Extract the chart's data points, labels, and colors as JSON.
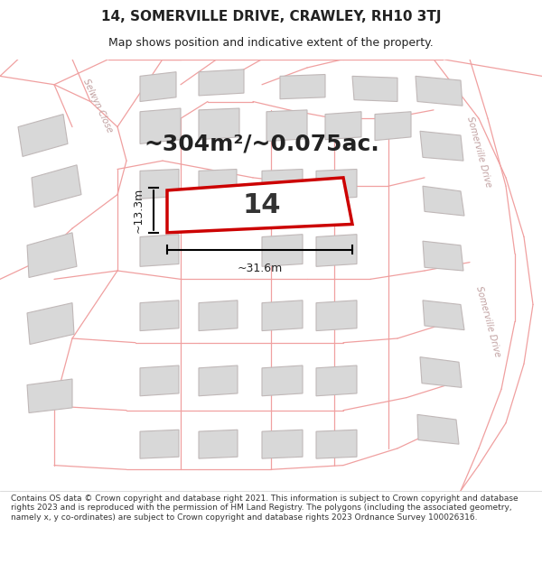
{
  "title": "14, SOMERVILLE DRIVE, CRAWLEY, RH10 3TJ",
  "subtitle": "Map shows position and indicative extent of the property.",
  "area_text": "~304m²/~0.075ac.",
  "property_number": "14",
  "width_label": "~31.6m",
  "height_label": "~13.3m",
  "footer_text": "Contains OS data © Crown copyright and database right 2021. This information is subject to Crown copyright and database rights 2023 and is reproduced with the permission of HM Land Registry. The polygons (including the associated geometry, namely x, y co-ordinates) are subject to Crown copyright and database rights 2023 Ordnance Survey 100026316.",
  "bg_color": "#f8f8f8",
  "map_bg": "#ffffff",
  "road_color": "#f0a0a0",
  "building_color": "#d8d8d8",
  "building_edge": "#c0b8b8",
  "plot_color": "#ffffff",
  "plot_edge": "#cc0000",
  "road_label_color": "#c0a0a0",
  "text_color": "#222222",
  "footer_color": "#333333",
  "title_fontsize": 11,
  "subtitle_fontsize": 9,
  "area_fontsize": 18,
  "number_fontsize": 20,
  "label_fontsize": 9,
  "footer_fontsize": 6.5
}
